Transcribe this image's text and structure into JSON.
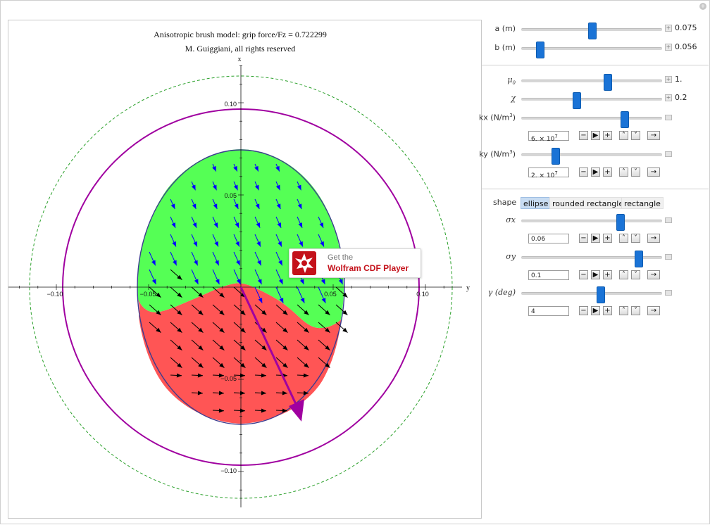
{
  "plot": {
    "title": "Anisotropic brush model: grip force/Fz = 0.722299",
    "subtitle": "M. Guiggiani, all rights reserved",
    "x_axis_label": "x",
    "y_axis_label": "y",
    "horizontal_ticks": [
      "−0.10",
      "−0.05",
      "0.05",
      "0.10"
    ],
    "vertical_ticks": [
      "0.10",
      "0.05",
      "−0.05",
      "−0.10"
    ],
    "colors": {
      "adhesion_region": "#55ff55",
      "sliding_region": "#ff5555",
      "contact_outline": "#3b3b8f",
      "friction_circle": "#a000a0",
      "outer_circle": "#2aa02a",
      "arrow_adhesion": "#0000ff",
      "arrow_sliding": "#000000",
      "force_arrow": "#a000a0"
    }
  },
  "cdf_badge": {
    "line1": "Get the",
    "line2": "Wolfram CDF Player"
  },
  "controls": {
    "a": {
      "label": "a (m)",
      "value": "0.075",
      "position": 0.5
    },
    "b": {
      "label": "b (m)",
      "value": "0.056",
      "position": 0.13
    },
    "mu0": {
      "label": "μ",
      "sub": "0",
      "value": "1.",
      "position": 0.61
    },
    "chi": {
      "label": "χ",
      "value": "0.2",
      "position": 0.39
    },
    "kx": {
      "label": "kx (N/m",
      "sup": "3",
      "suffix": ")",
      "field": "6. × 10",
      "field_sup": "7",
      "position": 0.73
    },
    "ky": {
      "label": "ky (N/m",
      "sup": "3",
      "suffix": ")",
      "field": "2. × 10",
      "field_sup": "7",
      "position": 0.24
    },
    "shape": {
      "label": "shape",
      "options": [
        "ellipse",
        "rounded rectangle",
        "rectangle"
      ],
      "selected": "ellipse"
    },
    "sigma_x": {
      "label": "σx",
      "field": "0.06",
      "position": 0.7
    },
    "sigma_y": {
      "label": "σy",
      "field": "0.1",
      "position": 0.83
    },
    "gamma": {
      "label": "γ (deg)",
      "field": "4",
      "position": 0.56
    }
  },
  "anim_buttons": {
    "minus": "−",
    "play": "▶",
    "plus": "+",
    "faster": "˄",
    "slower": "˅",
    "direction": "→"
  }
}
